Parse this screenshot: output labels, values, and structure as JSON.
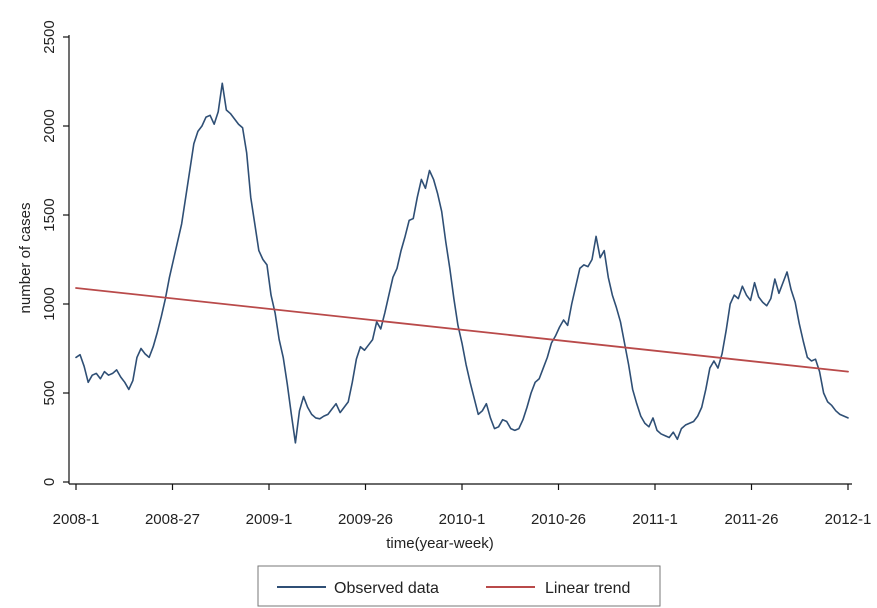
{
  "chart_data": {
    "type": "line",
    "x_label": "time(year-week)",
    "y_label": "number of cases",
    "x_tick_labels": [
      "2008-1",
      "2008-27",
      "2009-1",
      "2009-26",
      "2010-1",
      "2010-26",
      "2011-1",
      "2011-26",
      "2012-1"
    ],
    "y_ticks": [
      0,
      500,
      1000,
      1500,
      2000,
      2500
    ],
    "y_range": [
      0,
      2500
    ],
    "grid": false,
    "legend_placement": "bottom",
    "series": [
      {
        "name": "Observed data",
        "color": "#2f4f75",
        "points": [
          [
            0,
            700
          ],
          [
            1,
            715
          ],
          [
            2,
            650
          ],
          [
            3,
            560
          ],
          [
            4,
            600
          ],
          [
            5,
            610
          ],
          [
            6,
            580
          ],
          [
            7,
            620
          ],
          [
            8,
            600
          ],
          [
            9,
            610
          ],
          [
            10,
            630
          ],
          [
            11,
            590
          ],
          [
            12,
            560
          ],
          [
            13,
            520
          ],
          [
            14,
            570
          ],
          [
            15,
            700
          ],
          [
            16,
            750
          ],
          [
            17,
            720
          ],
          [
            18,
            700
          ],
          [
            19,
            760
          ],
          [
            20,
            840
          ],
          [
            21,
            930
          ],
          [
            22,
            1030
          ],
          [
            23,
            1150
          ],
          [
            24,
            1250
          ],
          [
            25,
            1350
          ],
          [
            26,
            1450
          ],
          [
            27,
            1600
          ],
          [
            28,
            1750
          ],
          [
            29,
            1900
          ],
          [
            30,
            1970
          ],
          [
            31,
            2000
          ],
          [
            32,
            2050
          ],
          [
            33,
            2060
          ],
          [
            34,
            2010
          ],
          [
            35,
            2080
          ],
          [
            36,
            2240
          ],
          [
            37,
            2090
          ],
          [
            38,
            2070
          ],
          [
            39,
            2040
          ],
          [
            40,
            2010
          ],
          [
            41,
            1990
          ],
          [
            42,
            1850
          ],
          [
            43,
            1600
          ],
          [
            44,
            1450
          ],
          [
            45,
            1300
          ],
          [
            46,
            1250
          ],
          [
            47,
            1220
          ],
          [
            48,
            1050
          ],
          [
            49,
            950
          ],
          [
            50,
            800
          ],
          [
            51,
            700
          ],
          [
            52,
            550
          ],
          [
            53,
            380
          ],
          [
            54,
            220
          ],
          [
            55,
            400
          ],
          [
            56,
            480
          ],
          [
            57,
            420
          ],
          [
            58,
            380
          ],
          [
            59,
            360
          ],
          [
            60,
            355
          ],
          [
            61,
            370
          ],
          [
            62,
            380
          ],
          [
            63,
            410
          ],
          [
            64,
            440
          ],
          [
            65,
            390
          ],
          [
            66,
            420
          ],
          [
            67,
            450
          ],
          [
            68,
            560
          ],
          [
            69,
            690
          ],
          [
            70,
            760
          ],
          [
            71,
            740
          ],
          [
            72,
            770
          ],
          [
            73,
            800
          ],
          [
            74,
            900
          ],
          [
            75,
            860
          ],
          [
            76,
            950
          ],
          [
            77,
            1050
          ],
          [
            78,
            1150
          ],
          [
            79,
            1200
          ],
          [
            80,
            1300
          ],
          [
            81,
            1380
          ],
          [
            82,
            1470
          ],
          [
            83,
            1480
          ],
          [
            84,
            1600
          ],
          [
            85,
            1700
          ],
          [
            86,
            1650
          ],
          [
            87,
            1750
          ],
          [
            88,
            1700
          ],
          [
            89,
            1620
          ],
          [
            90,
            1520
          ],
          [
            91,
            1350
          ],
          [
            92,
            1200
          ],
          [
            93,
            1030
          ],
          [
            94,
            880
          ],
          [
            95,
            780
          ],
          [
            96,
            660
          ],
          [
            97,
            560
          ],
          [
            98,
            470
          ],
          [
            99,
            380
          ],
          [
            100,
            400
          ],
          [
            101,
            440
          ],
          [
            102,
            360
          ],
          [
            103,
            300
          ],
          [
            104,
            310
          ],
          [
            105,
            350
          ],
          [
            106,
            340
          ],
          [
            107,
            300
          ],
          [
            108,
            290
          ],
          [
            109,
            300
          ],
          [
            110,
            350
          ],
          [
            111,
            420
          ],
          [
            112,
            500
          ],
          [
            113,
            560
          ],
          [
            114,
            580
          ],
          [
            115,
            640
          ],
          [
            116,
            700
          ],
          [
            117,
            780
          ],
          [
            118,
            820
          ],
          [
            119,
            870
          ],
          [
            120,
            910
          ],
          [
            121,
            880
          ],
          [
            122,
            1000
          ],
          [
            123,
            1100
          ],
          [
            124,
            1200
          ],
          [
            125,
            1220
          ],
          [
            126,
            1210
          ],
          [
            127,
            1250
          ],
          [
            128,
            1380
          ],
          [
            129,
            1260
          ],
          [
            130,
            1300
          ],
          [
            131,
            1150
          ],
          [
            132,
            1050
          ],
          [
            133,
            980
          ],
          [
            134,
            900
          ],
          [
            135,
            780
          ],
          [
            136,
            660
          ],
          [
            137,
            520
          ],
          [
            138,
            440
          ],
          [
            139,
            370
          ],
          [
            140,
            330
          ],
          [
            141,
            310
          ],
          [
            142,
            360
          ],
          [
            143,
            290
          ],
          [
            144,
            270
          ],
          [
            145,
            260
          ],
          [
            146,
            250
          ],
          [
            147,
            280
          ],
          [
            148,
            240
          ],
          [
            149,
            300
          ],
          [
            150,
            320
          ],
          [
            151,
            330
          ],
          [
            152,
            340
          ],
          [
            153,
            370
          ],
          [
            154,
            420
          ],
          [
            155,
            520
          ],
          [
            156,
            640
          ],
          [
            157,
            680
          ],
          [
            158,
            640
          ],
          [
            159,
            720
          ],
          [
            160,
            850
          ],
          [
            161,
            1000
          ],
          [
            162,
            1050
          ],
          [
            163,
            1030
          ],
          [
            164,
            1100
          ],
          [
            165,
            1050
          ],
          [
            166,
            1020
          ],
          [
            167,
            1120
          ],
          [
            168,
            1040
          ],
          [
            169,
            1010
          ],
          [
            170,
            990
          ],
          [
            171,
            1030
          ],
          [
            172,
            1140
          ],
          [
            173,
            1060
          ],
          [
            174,
            1120
          ],
          [
            175,
            1180
          ],
          [
            176,
            1080
          ],
          [
            177,
            1010
          ],
          [
            178,
            890
          ],
          [
            179,
            790
          ],
          [
            180,
            700
          ],
          [
            181,
            680
          ],
          [
            182,
            690
          ],
          [
            183,
            620
          ],
          [
            184,
            500
          ],
          [
            185,
            450
          ],
          [
            186,
            430
          ],
          [
            187,
            400
          ],
          [
            188,
            380
          ],
          [
            189,
            370
          ],
          [
            190,
            360
          ]
        ]
      },
      {
        "name": "Linear trend",
        "color": "#b94a4a",
        "points": [
          [
            0,
            1090
          ],
          [
            190,
            620
          ]
        ]
      }
    ]
  }
}
